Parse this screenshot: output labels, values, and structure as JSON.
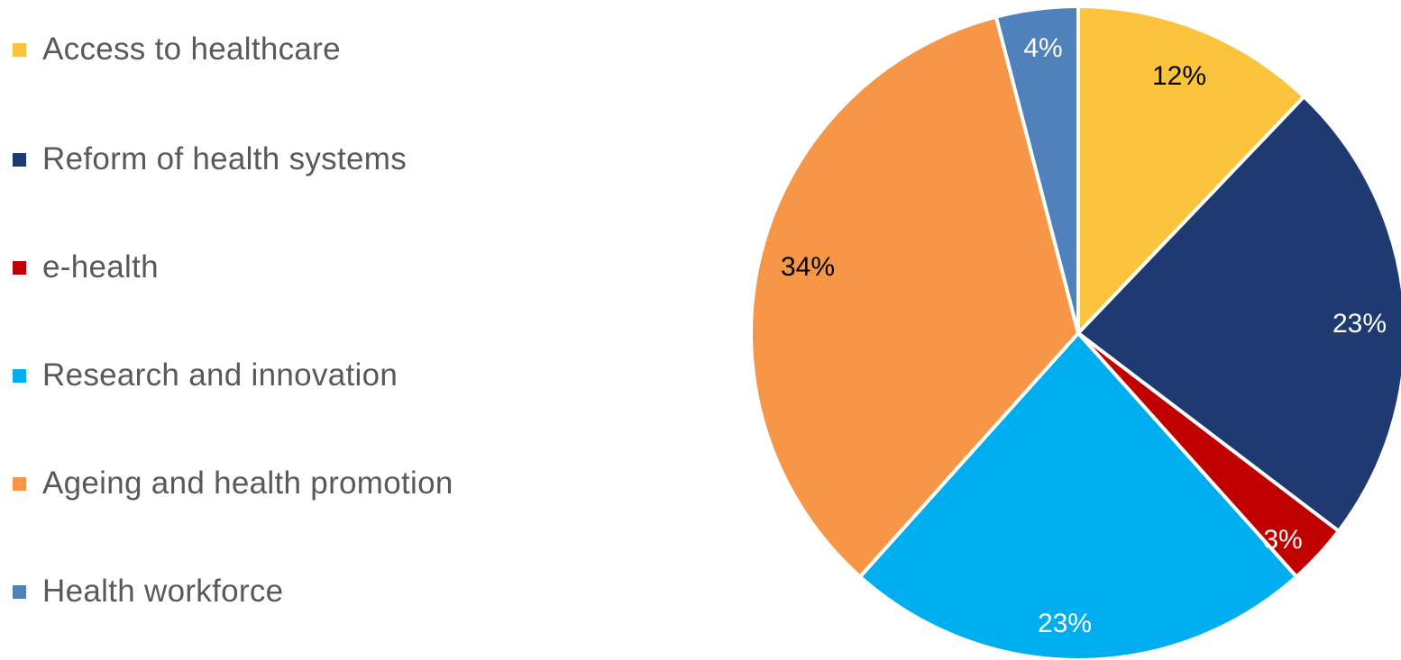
{
  "chart_data": {
    "type": "pie",
    "title": "",
    "categories": [
      "Access to healthcare",
      "Reform of health systems",
      "e-health",
      "Research and innovation",
      "Ageing and health promotion",
      "Health workforce"
    ],
    "values": [
      12,
      23,
      3,
      23,
      34,
      4
    ],
    "value_labels": [
      "12%",
      "23%",
      "3%",
      "23%",
      "34%",
      "4%"
    ],
    "colors": [
      "#FBC43C",
      "#1F3A70",
      "#C00000",
      "#00AEEF",
      "#F79646",
      "#4F81BD"
    ],
    "label_colors": [
      "#000000",
      "#ffffff",
      "#ffffff",
      "#ffffff",
      "#000000",
      "#ffffff"
    ],
    "start_angle": "12 o'clock",
    "direction": "clockwise",
    "legend_position": "left",
    "slice_separator_color": "#ffffff"
  }
}
